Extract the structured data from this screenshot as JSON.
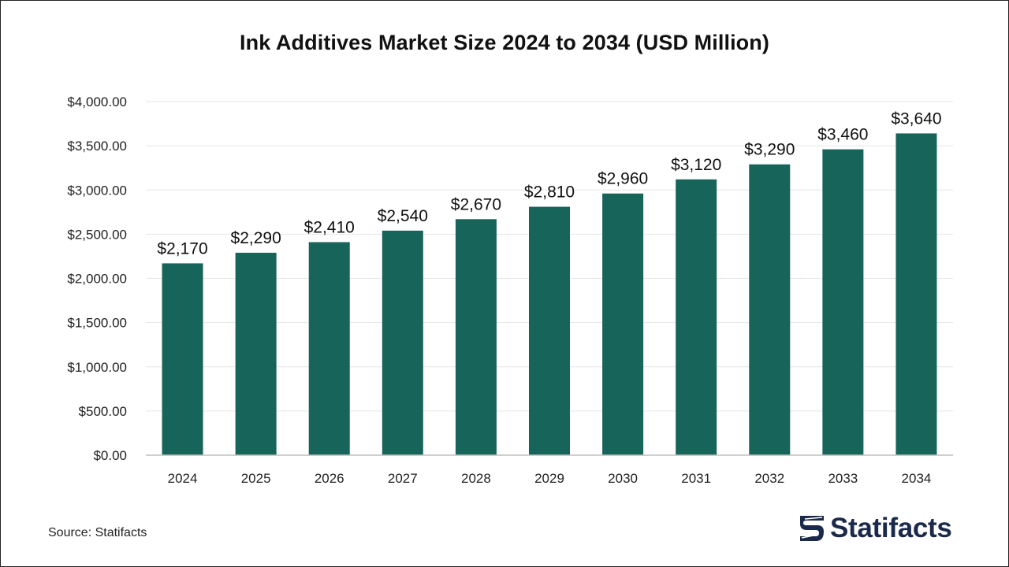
{
  "source_text": "Source: Statifacts",
  "logo": {
    "text": "Statifacts",
    "icon": "statifacts-logo-icon",
    "color": "#1b2a4a"
  },
  "colors": {
    "bar": "#17645a",
    "grid": "#e6e6e6",
    "axis": "#bfbfbf"
  },
  "chart_data": {
    "type": "bar",
    "title": "Ink Additives Market Size 2024 to 2034 (USD Million)",
    "xlabel": "",
    "ylabel": "",
    "categories": [
      "2024",
      "2025",
      "2026",
      "2027",
      "2028",
      "2029",
      "2030",
      "2031",
      "2032",
      "2033",
      "2034"
    ],
    "values": [
      2170,
      2290,
      2410,
      2540,
      2670,
      2810,
      2960,
      3120,
      3290,
      3460,
      3640
    ],
    "data_labels": [
      "$2,170",
      "$2,290",
      "$2,410",
      "$2,540",
      "$2,670",
      "$2,810",
      "$2,960",
      "$3,120",
      "$3,290",
      "$3,460",
      "$3,640"
    ],
    "yticks": [
      0,
      500,
      1000,
      1500,
      2000,
      2500,
      3000,
      3500,
      4000
    ],
    "ytick_labels": [
      "$0.00",
      "$500.00",
      "$1,000.00",
      "$1,500.00",
      "$2,000.00",
      "$2,500.00",
      "$3,000.00",
      "$3,500.00",
      "$4,000.00"
    ],
    "ylim": [
      0,
      4000
    ],
    "grid": true,
    "legend": "none"
  }
}
